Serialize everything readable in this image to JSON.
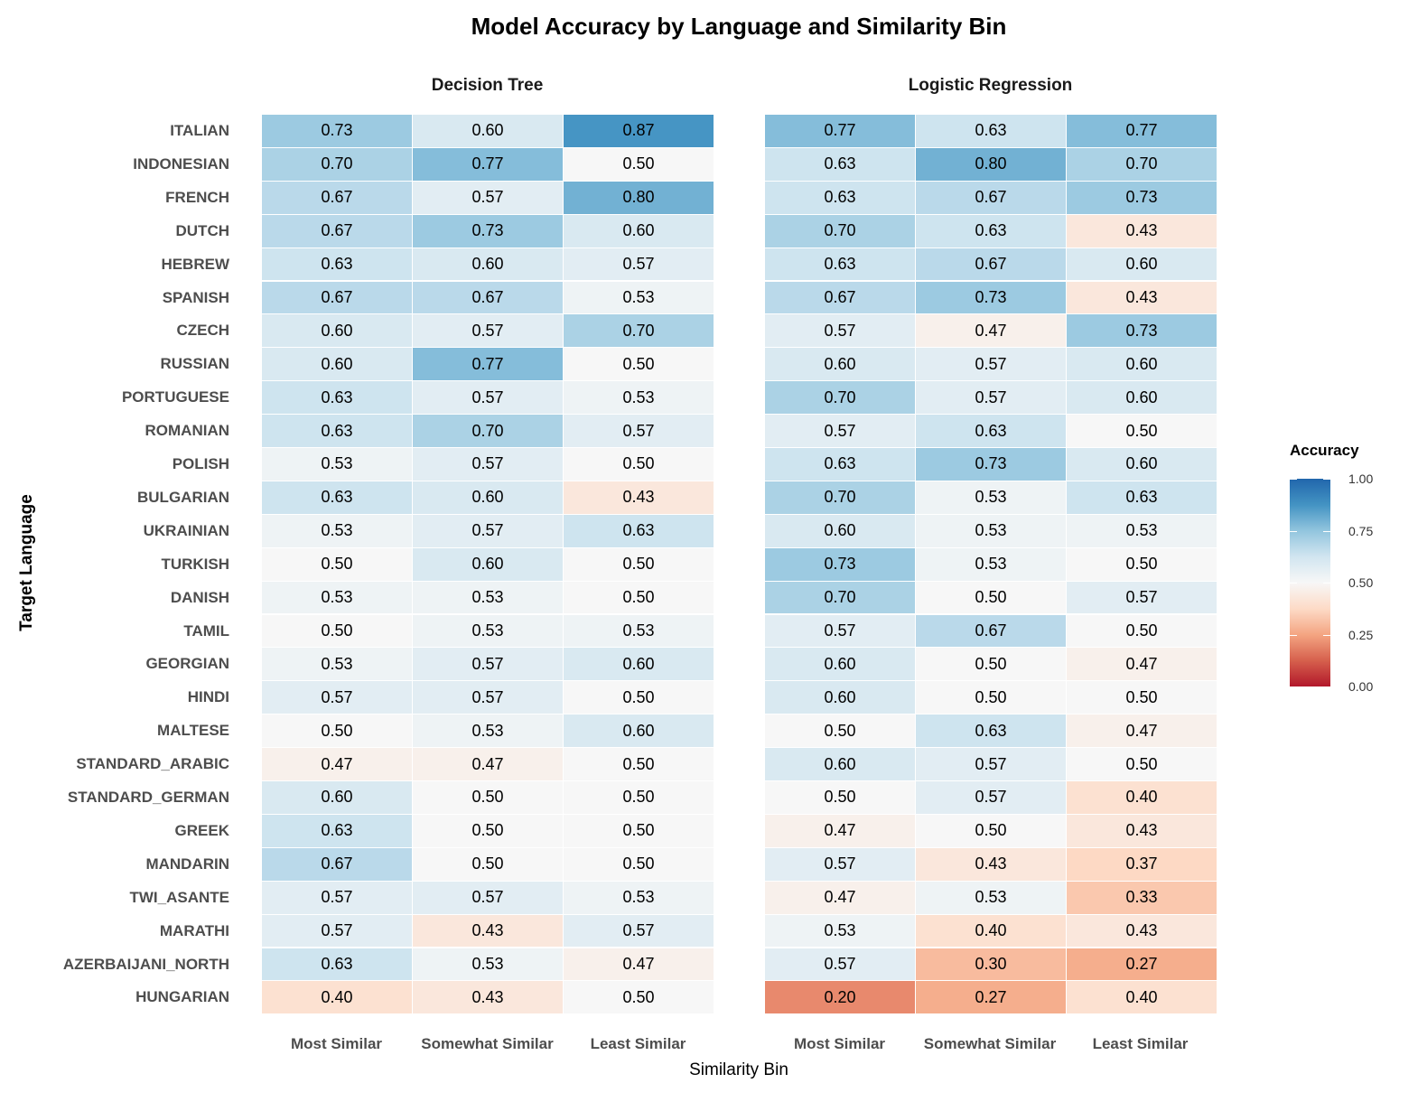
{
  "chart_data": {
    "type": "heatmap",
    "title": "Model Accuracy by Language and Similarity Bin",
    "xlabel": "Similarity Bin",
    "ylabel": "Target Language",
    "panels": [
      "Decision Tree",
      "Logistic Regression"
    ],
    "categories": [
      "Most Similar",
      "Somewhat Similar",
      "Least Similar"
    ],
    "rows": [
      "ITALIAN",
      "INDONESIAN",
      "FRENCH",
      "DUTCH",
      "HEBREW",
      "SPANISH",
      "CZECH",
      "RUSSIAN",
      "PORTUGUESE",
      "ROMANIAN",
      "POLISH",
      "BULGARIAN",
      "UKRAINIAN",
      "TURKISH",
      "DANISH",
      "TAMIL",
      "GEORGIAN",
      "HINDI",
      "MALTESE",
      "STANDARD_ARABIC",
      "STANDARD_GERMAN",
      "GREEK",
      "MANDARIN",
      "TWI_ASANTE",
      "MARATHI",
      "AZERBAIJANI_NORTH",
      "HUNGARIAN"
    ],
    "values": {
      "Decision Tree": [
        [
          0.73,
          0.6,
          0.87
        ],
        [
          0.7,
          0.77,
          0.5
        ],
        [
          0.67,
          0.57,
          0.8
        ],
        [
          0.67,
          0.73,
          0.6
        ],
        [
          0.63,
          0.6,
          0.57
        ],
        [
          0.67,
          0.67,
          0.53
        ],
        [
          0.6,
          0.57,
          0.7
        ],
        [
          0.6,
          0.77,
          0.5
        ],
        [
          0.63,
          0.57,
          0.53
        ],
        [
          0.63,
          0.7,
          0.57
        ],
        [
          0.53,
          0.57,
          0.5
        ],
        [
          0.63,
          0.6,
          0.43
        ],
        [
          0.53,
          0.57,
          0.63
        ],
        [
          0.5,
          0.6,
          0.5
        ],
        [
          0.53,
          0.53,
          0.5
        ],
        [
          0.5,
          0.53,
          0.53
        ],
        [
          0.53,
          0.57,
          0.6
        ],
        [
          0.57,
          0.57,
          0.5
        ],
        [
          0.5,
          0.53,
          0.6
        ],
        [
          0.47,
          0.47,
          0.5
        ],
        [
          0.6,
          0.5,
          0.5
        ],
        [
          0.63,
          0.5,
          0.5
        ],
        [
          0.67,
          0.5,
          0.5
        ],
        [
          0.57,
          0.57,
          0.53
        ],
        [
          0.57,
          0.43,
          0.57
        ],
        [
          0.63,
          0.53,
          0.47
        ],
        [
          0.4,
          0.43,
          0.5
        ]
      ],
      "Logistic Regression": [
        [
          0.77,
          0.63,
          0.77
        ],
        [
          0.63,
          0.8,
          0.7
        ],
        [
          0.63,
          0.67,
          0.73
        ],
        [
          0.7,
          0.63,
          0.43
        ],
        [
          0.63,
          0.67,
          0.6
        ],
        [
          0.67,
          0.73,
          0.43
        ],
        [
          0.57,
          0.47,
          0.73
        ],
        [
          0.6,
          0.57,
          0.6
        ],
        [
          0.7,
          0.57,
          0.6
        ],
        [
          0.57,
          0.63,
          0.5
        ],
        [
          0.63,
          0.73,
          0.6
        ],
        [
          0.7,
          0.53,
          0.63
        ],
        [
          0.6,
          0.53,
          0.53
        ],
        [
          0.73,
          0.53,
          0.5
        ],
        [
          0.7,
          0.5,
          0.57
        ],
        [
          0.57,
          0.67,
          0.5
        ],
        [
          0.6,
          0.5,
          0.47
        ],
        [
          0.6,
          0.5,
          0.5
        ],
        [
          0.5,
          0.63,
          0.47
        ],
        [
          0.6,
          0.57,
          0.5
        ],
        [
          0.5,
          0.57,
          0.4
        ],
        [
          0.47,
          0.5,
          0.43
        ],
        [
          0.57,
          0.43,
          0.37
        ],
        [
          0.47,
          0.53,
          0.33
        ],
        [
          0.53,
          0.4,
          0.43
        ],
        [
          0.57,
          0.3,
          0.27
        ],
        [
          0.2,
          0.27,
          0.4
        ]
      ]
    },
    "legend": {
      "title": "Accuracy",
      "ticks": [
        "1.00",
        "0.75",
        "0.50",
        "0.25",
        "0.00"
      ],
      "range": [
        0,
        1
      ],
      "colormap": "RdBu",
      "low_color": "#b2182b",
      "mid_color": "#f7f7f7",
      "high_color": "#2166ac",
      "placement": "right"
    },
    "grid": false
  }
}
